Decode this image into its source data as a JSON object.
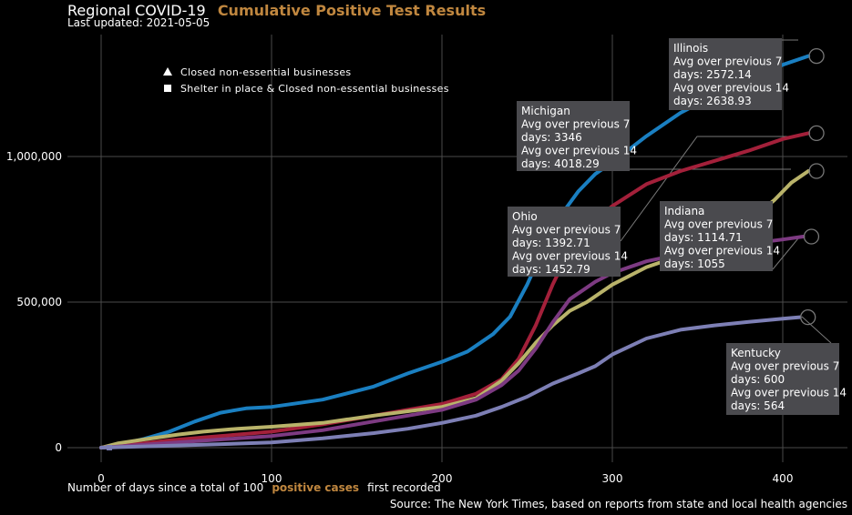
{
  "header": {
    "title": "Regional COVID-19",
    "title_accent": "Cumulative Positive Test Results",
    "updated": "Last updated: 2021-05-05"
  },
  "footer": {
    "xlabel_pre": "Number of days since a total of 100",
    "xlabel_accent": "positive cases",
    "xlabel_post": "first recorded",
    "source": "Source: The New York Times, based on reports from state and local health agencies"
  },
  "legend": [
    {
      "marker": "triangle",
      "label": "Closed non-essential businesses"
    },
    {
      "marker": "square",
      "label": "Shelter in place & Closed non-essential businesses"
    }
  ],
  "chart_data": {
    "type": "line",
    "title": "Cumulative Positive Test Results",
    "xlabel": "Number of days since a total of 100 positive cases first recorded",
    "ylabel": "",
    "xlim": [
      -8,
      420
    ],
    "ylim": [
      -50000,
      1420000
    ],
    "x_ticks": [
      0,
      100,
      200,
      300,
      400
    ],
    "y_ticks": [
      0,
      500000,
      1000000
    ],
    "y_tick_labels": [
      "0",
      "500,000",
      "1,000,000"
    ],
    "grid": true,
    "series": [
      {
        "name": "Illinois",
        "color": "#1a7fc1",
        "x": [
          0,
          10,
          25,
          40,
          55,
          70,
          85,
          100,
          130,
          160,
          180,
          200,
          215,
          230,
          240,
          250,
          260,
          270,
          280,
          290,
          300,
          320,
          340,
          360,
          380,
          400,
          415
        ],
        "y": [
          0,
          10000,
          30000,
          55000,
          90000,
          120000,
          135000,
          140000,
          165000,
          210000,
          255000,
          295000,
          330000,
          390000,
          450000,
          560000,
          690000,
          800000,
          880000,
          940000,
          980000,
          1070000,
          1150000,
          1210000,
          1270000,
          1315000,
          1345000
        ]
      },
      {
        "name": "Michigan",
        "color": "#a3203a",
        "x": [
          0,
          20,
          40,
          60,
          80,
          100,
          130,
          160,
          180,
          200,
          220,
          235,
          245,
          255,
          265,
          275,
          290,
          300,
          320,
          340,
          360,
          380,
          400,
          415
        ],
        "y": [
          0,
          12000,
          25000,
          35000,
          45000,
          55000,
          80000,
          110000,
          130000,
          150000,
          185000,
          235000,
          305000,
          420000,
          560000,
          680000,
          780000,
          830000,
          905000,
          950000,
          985000,
          1020000,
          1060000,
          1080000
        ]
      },
      {
        "name": "Ohio",
        "color": "#b9b36a",
        "x": [
          0,
          10,
          25,
          45,
          60,
          80,
          100,
          130,
          160,
          180,
          200,
          220,
          235,
          245,
          255,
          265,
          275,
          285,
          300,
          320,
          340,
          360,
          380,
          395,
          405,
          415
        ],
        "y": [
          0,
          15000,
          28000,
          45000,
          55000,
          65000,
          72000,
          85000,
          110000,
          125000,
          140000,
          170000,
          230000,
          290000,
          360000,
          420000,
          470000,
          500000,
          560000,
          620000,
          660000,
          710000,
          780000,
          850000,
          910000,
          950000
        ]
      },
      {
        "name": "Indiana",
        "color": "#7d3a82",
        "x": [
          0,
          20,
          40,
          60,
          80,
          100,
          130,
          160,
          180,
          200,
          220,
          235,
          245,
          255,
          265,
          275,
          290,
          300,
          320,
          340,
          360,
          380,
          400,
          412
        ],
        "y": [
          0,
          8000,
          16000,
          24000,
          32000,
          40000,
          60000,
          90000,
          110000,
          130000,
          165000,
          215000,
          265000,
          340000,
          430000,
          510000,
          570000,
          600000,
          640000,
          665000,
          680000,
          700000,
          715000,
          725000
        ]
      },
      {
        "name": "Kentucky",
        "color": "#7d7fb5",
        "x": [
          0,
          30,
          60,
          100,
          130,
          160,
          180,
          200,
          220,
          235,
          250,
          265,
          280,
          290,
          300,
          320,
          340,
          360,
          380,
          400,
          410
        ],
        "y": [
          0,
          5000,
          10000,
          18000,
          32000,
          50000,
          65000,
          85000,
          110000,
          140000,
          175000,
          220000,
          255000,
          280000,
          320000,
          375000,
          405000,
          420000,
          432000,
          443000,
          448000
        ]
      }
    ],
    "annotations": [
      {
        "series": "Illinois",
        "state": "Illinois",
        "line1": "Avg over previous 7",
        "line2": "days: 2572.14",
        "line3": "Avg over previous 14",
        "line4": "days: 2638.93"
      },
      {
        "series": "Michigan",
        "state": "Michigan",
        "line1": "Avg over previous 7",
        "line2": "days: 3346",
        "line3": "Avg over previous 14",
        "line4": "days: 4018.29"
      },
      {
        "series": "Ohio",
        "state": "Ohio",
        "line1": "Avg over previous 7",
        "line2": "days: 1392.71",
        "line3": "Avg over previous 14",
        "line4": "days: 1452.79"
      },
      {
        "series": "Indiana",
        "state": "Indiana",
        "line1": "Avg over previous 7",
        "line2": "days: 1114.71",
        "line3": "Avg over previous 14",
        "line4": "days: 1055"
      },
      {
        "series": "Kentucky",
        "state": "Kentucky",
        "line1": "Avg over previous 7",
        "line2": "days: 600",
        "line3": "Avg over previous 14",
        "line4": "days: 564"
      }
    ]
  }
}
